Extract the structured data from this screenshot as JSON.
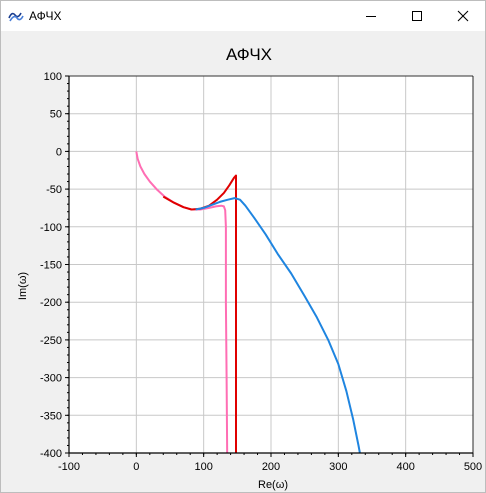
{
  "window": {
    "title": "АФЧХ",
    "icon": "chart-app-icon"
  },
  "chart_data": {
    "type": "line",
    "title": "АФЧХ",
    "xlabel": "Re(ω)",
    "ylabel": "Im(ω)",
    "xlim": [
      -100,
      500
    ],
    "ylim": [
      -400,
      100
    ],
    "xticks": [
      -100,
      0,
      100,
      200,
      300,
      400,
      500
    ],
    "yticks": [
      100,
      50,
      0,
      -50,
      -100,
      -150,
      -200,
      -250,
      -300,
      -350,
      -400
    ],
    "grid": true,
    "series": [
      {
        "color": "#ff6eb4",
        "points": [
          [
            0,
            0
          ],
          [
            2,
            -10
          ],
          [
            6,
            -20
          ],
          [
            12,
            -30
          ],
          [
            20,
            -40
          ],
          [
            30,
            -50
          ],
          [
            42,
            -60
          ],
          [
            56,
            -68
          ],
          [
            70,
            -74
          ],
          [
            82,
            -77
          ],
          [
            95,
            -77
          ],
          [
            108,
            -75
          ],
          [
            118,
            -73
          ],
          [
            126,
            -72
          ],
          [
            130,
            -73
          ],
          [
            132,
            -78
          ],
          [
            133,
            -100
          ],
          [
            133,
            -200
          ],
          [
            134,
            -300
          ],
          [
            135,
            -405
          ]
        ]
      },
      {
        "color": "#e00000",
        "points": [
          [
            40,
            -60
          ],
          [
            56,
            -68
          ],
          [
            70,
            -74
          ],
          [
            82,
            -77
          ],
          [
            95,
            -76
          ],
          [
            108,
            -72
          ],
          [
            120,
            -64
          ],
          [
            130,
            -55
          ],
          [
            138,
            -45
          ],
          [
            145,
            -35
          ],
          [
            148,
            -32
          ],
          [
            148,
            -405
          ]
        ]
      },
      {
        "color": "#1f85e0",
        "points": [
          [
            88,
            -77
          ],
          [
            100,
            -75
          ],
          [
            112,
            -71
          ],
          [
            124,
            -67
          ],
          [
            136,
            -64
          ],
          [
            146,
            -62
          ],
          [
            154,
            -64
          ],
          [
            162,
            -72
          ],
          [
            175,
            -88
          ],
          [
            192,
            -110
          ],
          [
            210,
            -136
          ],
          [
            230,
            -162
          ],
          [
            250,
            -192
          ],
          [
            268,
            -220
          ],
          [
            285,
            -250
          ],
          [
            300,
            -282
          ],
          [
            312,
            -318
          ],
          [
            322,
            -355
          ],
          [
            330,
            -390
          ],
          [
            333,
            -405
          ]
        ]
      }
    ]
  }
}
